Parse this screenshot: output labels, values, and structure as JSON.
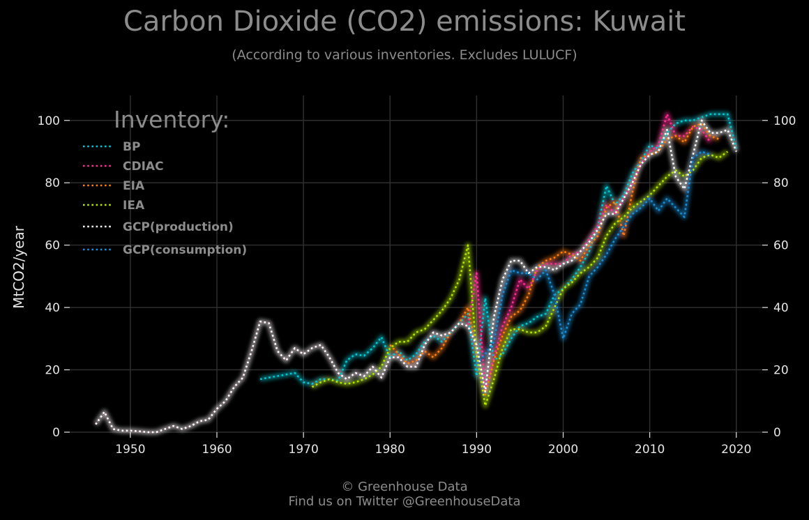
{
  "header": {
    "title": "Carbon Dioxide (CO2) emissions: Kuwait",
    "subtitle": "(According to various inventories. Excludes LULUCF)"
  },
  "footer": {
    "line1": "© Greenhouse Data",
    "line2": "Find us on Twitter @GreenhouseData"
  },
  "chart_data": {
    "type": "line",
    "title": "Carbon Dioxide (CO2) emissions: Kuwait",
    "subtitle": "(According to various inventories. Excludes LULUCF)",
    "xlabel": "",
    "ylabel": "MtCO2/year",
    "xlim": [
      1943,
      2023
    ],
    "ylim": [
      0,
      108
    ],
    "x_ticks": [
      1950,
      1960,
      1970,
      1980,
      1990,
      2000,
      2010,
      2020
    ],
    "y_ticks": [
      0,
      20,
      40,
      60,
      80,
      100
    ],
    "grid": true,
    "line_style": "dotted",
    "legend": {
      "title": "Inventory:",
      "placement": "top-left"
    },
    "series": [
      {
        "name": "BP",
        "color": "#00c8d4",
        "x": [
          1965,
          1966,
          1967,
          1968,
          1969,
          1970,
          1971,
          1972,
          1973,
          1974,
          1975,
          1976,
          1977,
          1978,
          1979,
          1980,
          1981,
          1982,
          1983,
          1984,
          1985,
          1986,
          1987,
          1988,
          1989,
          1990,
          1991,
          1992,
          1993,
          1994,
          1995,
          1996,
          1997,
          1998,
          1999,
          2000,
          2001,
          2002,
          2003,
          2004,
          2005,
          2006,
          2007,
          2008,
          2009,
          2010,
          2011,
          2012,
          2013,
          2014,
          2015,
          2016,
          2017,
          2018,
          2019,
          2020
        ],
        "y": [
          17,
          17.5,
          18,
          18.5,
          19,
          16,
          15.5,
          17,
          17,
          16.5,
          23,
          25,
          24.5,
          27,
          30.5,
          24,
          26,
          23,
          25,
          29,
          31,
          29,
          32,
          35,
          38,
          18,
          43,
          23,
          25,
          30,
          34,
          35,
          37,
          38,
          44,
          46,
          49,
          53,
          58,
          66,
          79,
          73,
          76,
          83,
          87,
          92,
          91,
          96,
          99,
          100,
          100,
          101,
          102,
          102,
          102,
          91
        ]
      },
      {
        "name": "CDIAC",
        "color": "#ff2d95",
        "x": [
          1946,
          1947,
          1948,
          1949,
          1950,
          1951,
          1952,
          1953,
          1954,
          1955,
          1956,
          1957,
          1958,
          1959,
          1960,
          1961,
          1962,
          1963,
          1964,
          1965,
          1966,
          1967,
          1968,
          1969,
          1970,
          1971,
          1972,
          1973,
          1974,
          1975,
          1976,
          1977,
          1978,
          1979,
          1980,
          1981,
          1982,
          1983,
          1984,
          1985,
          1986,
          1987,
          1988,
          1989,
          1990,
          1991,
          1992,
          1993,
          1994,
          1995,
          1996,
          1997,
          1998,
          1999,
          2000,
          2001,
          2002,
          2003,
          2004,
          2005,
          2006,
          2007,
          2008,
          2009,
          2010,
          2011,
          2012,
          2013,
          2014,
          2015,
          2016,
          2017
        ],
        "y": [
          2.5,
          6.5,
          1,
          0.5,
          0.5,
          0.3,
          0,
          0,
          1,
          2,
          1,
          2,
          3.5,
          4,
          7.5,
          10,
          14.5,
          17.5,
          26,
          35.5,
          35,
          26,
          23,
          27,
          25,
          27,
          28,
          24,
          19,
          17,
          19,
          18,
          21,
          17.5,
          24,
          24,
          21,
          21,
          28,
          32,
          31,
          32,
          35,
          34,
          51,
          13,
          24,
          34,
          40,
          49,
          46,
          52,
          54,
          54,
          54,
          57,
          58,
          62,
          66,
          73,
          70,
          75,
          80,
          86,
          90,
          92,
          102,
          95,
          95,
          98,
          97,
          93
        ]
      },
      {
        "name": "EIA",
        "color": "#ff7f0e",
        "x": [
          1980,
          1981,
          1982,
          1983,
          1984,
          1985,
          1986,
          1987,
          1988,
          1989,
          1990,
          1991,
          1992,
          1993,
          1994,
          1995,
          1996,
          1997,
          1998,
          1999,
          2000,
          2001,
          2002,
          2003,
          2004,
          2005,
          2006,
          2007,
          2008,
          2009,
          2010,
          2011,
          2012,
          2013,
          2014,
          2015,
          2016,
          2017,
          2018
        ],
        "y": [
          28,
          25,
          22,
          23,
          26,
          24,
          27,
          32,
          35,
          40,
          26,
          12,
          23,
          31,
          37,
          39,
          44,
          53,
          55,
          56,
          58,
          57,
          55,
          60,
          63,
          72,
          74,
          63,
          77,
          88,
          89,
          90,
          94,
          95,
          93,
          98,
          99,
          95,
          94
        ]
      },
      {
        "name": "IEA",
        "color": "#b3e600",
        "x": [
          1971,
          1972,
          1973,
          1974,
          1975,
          1976,
          1977,
          1978,
          1979,
          1980,
          1981,
          1982,
          1983,
          1984,
          1985,
          1986,
          1987,
          1988,
          1989,
          1990,
          1991,
          1992,
          1993,
          1994,
          1995,
          1996,
          1997,
          1998,
          1999,
          2000,
          2001,
          2002,
          2003,
          2004,
          2005,
          2006,
          2007,
          2008,
          2009,
          2010,
          2011,
          2012,
          2013,
          2014,
          2015,
          2016,
          2017,
          2018,
          2019
        ],
        "y": [
          14.5,
          16,
          17,
          16,
          15.5,
          16,
          17,
          18.5,
          21,
          27,
          29,
          29,
          32,
          33,
          36,
          39,
          43,
          49,
          60,
          25,
          8.5,
          17,
          27,
          33,
          33,
          32,
          32,
          34,
          40,
          46,
          48,
          51,
          53,
          56,
          63,
          67,
          69,
          72,
          74,
          76,
          79,
          82,
          84,
          82,
          84,
          88,
          89,
          88,
          90
        ]
      },
      {
        "name": "GCP(production)",
        "color": "#ffffff",
        "x": [
          1946,
          1947,
          1948,
          1949,
          1950,
          1951,
          1952,
          1953,
          1954,
          1955,
          1956,
          1957,
          1958,
          1959,
          1960,
          1961,
          1962,
          1963,
          1964,
          1965,
          1966,
          1967,
          1968,
          1969,
          1970,
          1971,
          1972,
          1973,
          1974,
          1975,
          1976,
          1977,
          1978,
          1979,
          1980,
          1981,
          1982,
          1983,
          1984,
          1985,
          1986,
          1987,
          1988,
          1989,
          1990,
          1991,
          1992,
          1993,
          1994,
          1995,
          1996,
          1997,
          1998,
          1999,
          2000,
          2001,
          2002,
          2003,
          2004,
          2005,
          2006,
          2007,
          2008,
          2009,
          2010,
          2011,
          2012,
          2013,
          2014,
          2015,
          2016,
          2017,
          2018,
          2019,
          2020
        ],
        "y": [
          2.5,
          6.5,
          1,
          0.5,
          0.5,
          0.3,
          0,
          0,
          1,
          2,
          1,
          2,
          3.5,
          4,
          7.5,
          10,
          14.5,
          17.5,
          26,
          35.5,
          35,
          26,
          23,
          27,
          25,
          27,
          28,
          24,
          19,
          17,
          19,
          18,
          21,
          17.5,
          24,
          24,
          21,
          21,
          28,
          32,
          31,
          32,
          35,
          34,
          28,
          13,
          37,
          49,
          55,
          55,
          51,
          53,
          53,
          52,
          54,
          55,
          58,
          61,
          65,
          70,
          70,
          75,
          80,
          86,
          89,
          90,
          97,
          82,
          78,
          89,
          100,
          96,
          96,
          97,
          90
        ]
      },
      {
        "name": "GCP(consumption)",
        "color": "#1a8fd6",
        "x": [
          1990,
          1991,
          1992,
          1993,
          1994,
          1995,
          1996,
          1997,
          1998,
          1999,
          2000,
          2001,
          2002,
          2003,
          2004,
          2005,
          2006,
          2007,
          2008,
          2009,
          2010,
          2011,
          2012,
          2013,
          2014,
          2015,
          2016,
          2017
        ],
        "y": [
          22,
          25,
          29,
          44,
          52,
          51,
          51,
          49,
          52,
          44,
          30,
          38,
          41,
          50,
          53,
          57,
          62,
          66,
          70,
          72,
          75,
          71,
          75,
          72,
          69,
          88,
          90,
          89
        ]
      }
    ]
  }
}
